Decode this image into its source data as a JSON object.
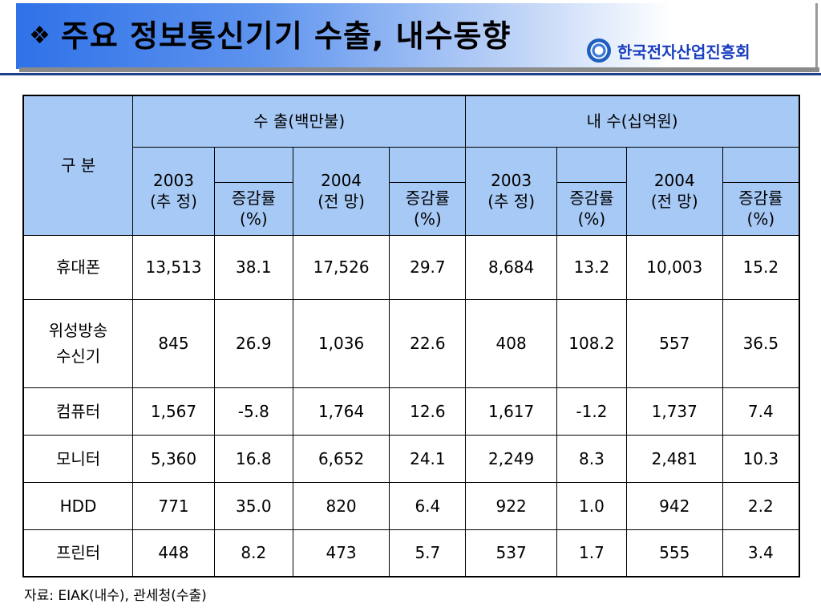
{
  "title": {
    "bullet": "❖",
    "text": "주요 정보통신기기 수출, 내수동향"
  },
  "org": {
    "name": "한국전자산업진흥회",
    "logo_icon": "org-emblem-icon"
  },
  "table": {
    "category_header": "구  분",
    "group_headers": [
      "수      출(백만불)",
      "내      수(십억원)"
    ],
    "year_headers": [
      {
        "year": "2003",
        "note": "(추 정)"
      },
      {
        "year": "2004",
        "note": "(전 망)"
      },
      {
        "year": "2003",
        "note": "(추 정)"
      },
      {
        "year": "2004",
        "note": "(전 망)"
      }
    ],
    "rate_header": [
      "증감률",
      "(%)"
    ],
    "rows": [
      {
        "label": [
          "휴대폰"
        ],
        "values": [
          "13,513",
          "38.1",
          "17,526",
          "29.7",
          "8,684",
          "13.2",
          "10,003",
          "15.2"
        ]
      },
      {
        "label": [
          "위성방송",
          "수신기"
        ],
        "values": [
          "845",
          "26.9",
          "1,036",
          "22.6",
          "408",
          "108.2",
          "557",
          "36.5"
        ]
      },
      {
        "label": [
          "컴퓨터"
        ],
        "values": [
          "1,567",
          "-5.8",
          "1,764",
          "12.6",
          "1,617",
          "-1.2",
          "1,737",
          "7.4"
        ]
      },
      {
        "label": [
          "모니터"
        ],
        "values": [
          "5,360",
          "16.8",
          "6,652",
          "24.1",
          "2,249",
          "8.3",
          "2,481",
          "10.3"
        ]
      },
      {
        "label": [
          "HDD"
        ],
        "values": [
          "771",
          "35.0",
          "820",
          "6.4",
          "922",
          "1.0",
          "942",
          "2.2"
        ]
      },
      {
        "label": [
          "프린터"
        ],
        "values": [
          "448",
          "8.2",
          "473",
          "5.7",
          "537",
          "1.7",
          "555",
          "3.4"
        ]
      }
    ]
  },
  "source": "자료: EIAK(내수), 관세청(수출)",
  "colors": {
    "header_fill": "#a7c9f5",
    "title_gradient_start": "#2f72e8",
    "org_text": "#1a3fbf"
  }
}
